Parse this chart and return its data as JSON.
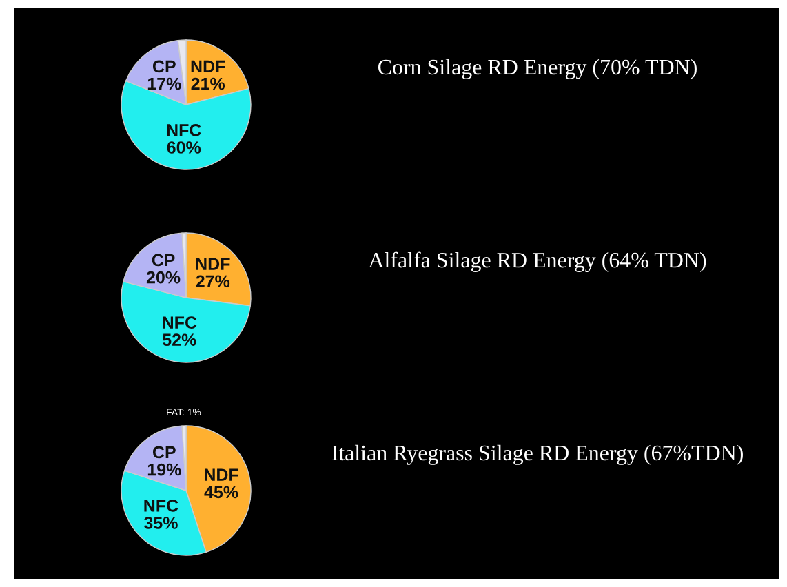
{
  "chart_data": [
    {
      "type": "pie",
      "title": "Corn Silage RD Energy (70% TDN)",
      "categories": [
        "NDF",
        "NFC",
        "CP",
        null
      ],
      "values": [
        21,
        60,
        17,
        2
      ],
      "value_labels": [
        "21%",
        "60%",
        "17%",
        null
      ],
      "colors": [
        "#ffb030",
        "#22eeee",
        "#b4b4f4",
        "#e8e8f0"
      ]
    },
    {
      "type": "pie",
      "title": "Alfalfa Silage RD Energy (64% TDN)",
      "categories": [
        "NDF",
        "NFC",
        "CP",
        null
      ],
      "values": [
        27,
        52,
        20,
        1
      ],
      "value_labels": [
        "27%",
        "52%",
        "20%",
        null
      ],
      "colors": [
        "#ffb030",
        "#22eeee",
        "#b4b4f4",
        "#e8e8f0"
      ]
    },
    {
      "type": "pie",
      "title": "Italian Ryegrass Silage RD Energy (67%TDN)",
      "categories": [
        "NDF",
        "NFC",
        "CP",
        null
      ],
      "values": [
        45,
        35,
        19,
        1
      ],
      "value_labels": [
        "45%",
        "35%",
        "19%",
        "FAT: 1%"
      ],
      "colors": [
        "#ffb030",
        "#22eeee",
        "#b4b4f4",
        "#e8e8f0"
      ]
    }
  ]
}
